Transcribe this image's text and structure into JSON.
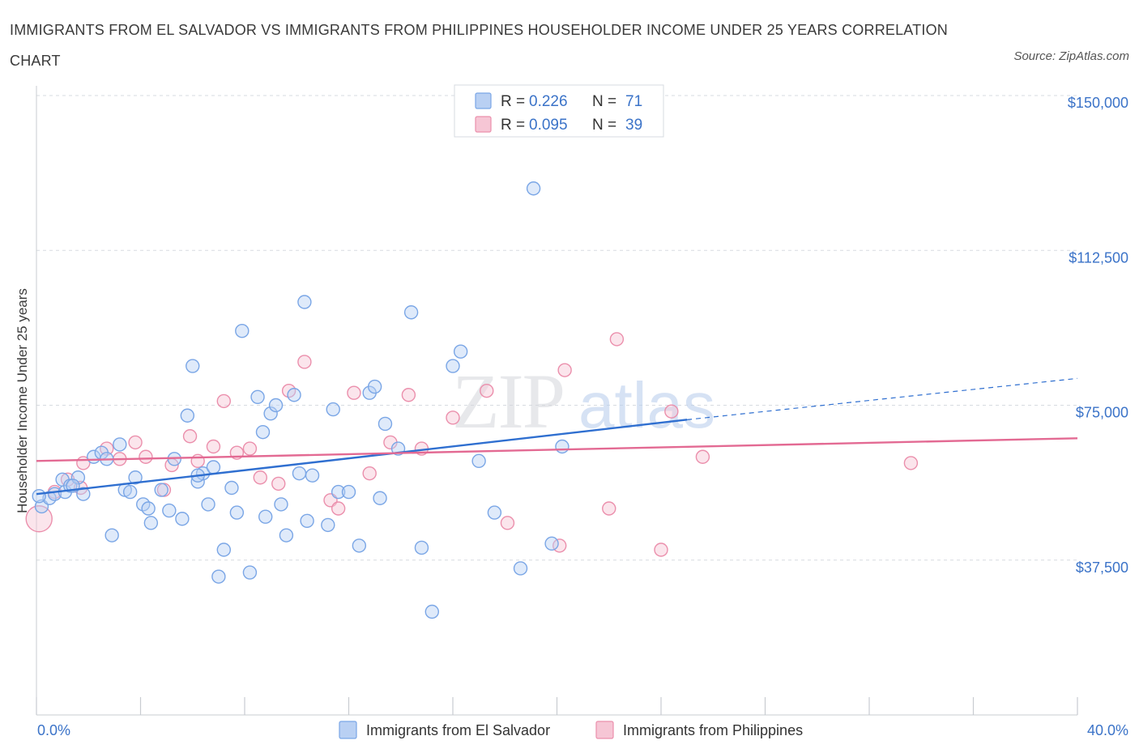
{
  "title": "IMMIGRANTS FROM EL SALVADOR VS IMMIGRANTS FROM PHILIPPINES HOUSEHOLDER INCOME UNDER 25 YEARS CORRELATION CHART",
  "source": "Source: ZipAtlas.com",
  "watermark": "ZIPatlas",
  "colors": {
    "blue": "#7aa6e6",
    "blue_fill": "#b9d0f3",
    "blue_line": "#2f6fd0",
    "pink": "#eb8fac",
    "pink_fill": "#f6c6d5",
    "pink_line": "#e36a93",
    "accent_text": "#3b73c8",
    "grid": "#d7dbe0"
  },
  "legend": {
    "rows": [
      {
        "r_label": "R =",
        "r_value": "0.226",
        "n_label": "N =",
        "n_value": "71",
        "series": "blue"
      },
      {
        "r_label": "R =",
        "r_value": "0.095",
        "n_label": "N =",
        "n_value": "39",
        "series": "pink"
      }
    ]
  },
  "bottom_legend": [
    {
      "label": "Immigrants from El Salvador",
      "series": "blue"
    },
    {
      "label": "Immigrants from Philippines",
      "series": "pink"
    }
  ],
  "chart_data": {
    "type": "scatter",
    "xlabel": "",
    "ylabel": "Householder Income Under 25 years",
    "xlim": [
      0,
      40
    ],
    "ylim": [
      0,
      150000
    ],
    "x_tick_labels": [
      "0.0%",
      "40.0%"
    ],
    "y_ticks": [
      37500,
      75000,
      112500,
      150000
    ],
    "y_tick_labels": [
      "$37,500",
      "$75,000",
      "$112,500",
      "$150,000"
    ],
    "grid": true,
    "legend_position": "top-center",
    "series": [
      {
        "name": "Immigrants from El Salvador",
        "color": "blue",
        "trend": {
          "x0": 0,
          "y0": 53500,
          "x1": 25,
          "y1": 71500,
          "dash_to_x": 40,
          "dash_to_y": 81500
        },
        "points": [
          [
            0.2,
            50500
          ],
          [
            0.5,
            52500
          ],
          [
            0.7,
            53500
          ],
          [
            1.0,
            57000
          ],
          [
            1.1,
            54000
          ],
          [
            1.3,
            55500
          ],
          [
            1.6,
            57500
          ],
          [
            1.8,
            53500
          ],
          [
            2.2,
            62500
          ],
          [
            2.5,
            63500
          ],
          [
            2.7,
            62000
          ],
          [
            2.9,
            43500
          ],
          [
            3.2,
            65500
          ],
          [
            3.4,
            54500
          ],
          [
            3.6,
            54000
          ],
          [
            3.8,
            57500
          ],
          [
            4.1,
            51000
          ],
          [
            4.3,
            50000
          ],
          [
            4.4,
            46500
          ],
          [
            4.8,
            54500
          ],
          [
            5.1,
            49500
          ],
          [
            5.3,
            62000
          ],
          [
            5.6,
            47500
          ],
          [
            5.8,
            72500
          ],
          [
            6.0,
            84500
          ],
          [
            6.2,
            56500
          ],
          [
            6.4,
            58500
          ],
          [
            6.6,
            51000
          ],
          [
            6.8,
            60000
          ],
          [
            7.0,
            33500
          ],
          [
            7.2,
            40000
          ],
          [
            7.5,
            55000
          ],
          [
            7.7,
            49000
          ],
          [
            7.9,
            93000
          ],
          [
            8.2,
            34500
          ],
          [
            8.5,
            77000
          ],
          [
            8.7,
            68500
          ],
          [
            8.8,
            48000
          ],
          [
            9.0,
            73000
          ],
          [
            9.2,
            75000
          ],
          [
            9.4,
            51000
          ],
          [
            9.6,
            43500
          ],
          [
            9.9,
            77500
          ],
          [
            10.1,
            58500
          ],
          [
            10.3,
            100000
          ],
          [
            10.4,
            47000
          ],
          [
            10.6,
            58000
          ],
          [
            11.2,
            46000
          ],
          [
            11.4,
            74000
          ],
          [
            11.6,
            54000
          ],
          [
            12.0,
            54000
          ],
          [
            12.4,
            41000
          ],
          [
            12.8,
            78000
          ],
          [
            13.0,
            79500
          ],
          [
            13.2,
            52500
          ],
          [
            13.4,
            70500
          ],
          [
            13.9,
            64500
          ],
          [
            14.4,
            97500
          ],
          [
            14.8,
            40500
          ],
          [
            15.2,
            25000
          ],
          [
            16.0,
            84500
          ],
          [
            16.3,
            88000
          ],
          [
            17.0,
            61500
          ],
          [
            17.6,
            49000
          ],
          [
            18.6,
            35500
          ],
          [
            19.1,
            127500
          ],
          [
            19.8,
            41500
          ],
          [
            20.2,
            65000
          ],
          [
            0.1,
            53000
          ],
          [
            1.4,
            55500
          ],
          [
            6.2,
            58000
          ]
        ]
      },
      {
        "name": "Immigrants from Philippines",
        "color": "pink",
        "trend": {
          "x0": 0,
          "y0": 61500,
          "x1": 40,
          "y1": 67000
        },
        "points": [
          [
            0.1,
            47500
          ],
          [
            0.7,
            54000
          ],
          [
            1.2,
            57000
          ],
          [
            1.7,
            55000
          ],
          [
            1.8,
            61000
          ],
          [
            2.7,
            64500
          ],
          [
            3.2,
            62000
          ],
          [
            3.8,
            66000
          ],
          [
            4.2,
            62500
          ],
          [
            4.9,
            54500
          ],
          [
            5.2,
            60500
          ],
          [
            5.9,
            67500
          ],
          [
            6.2,
            61500
          ],
          [
            6.8,
            65000
          ],
          [
            7.2,
            76000
          ],
          [
            7.7,
            63500
          ],
          [
            8.2,
            64500
          ],
          [
            8.6,
            57500
          ],
          [
            9.3,
            56000
          ],
          [
            9.7,
            78500
          ],
          [
            10.3,
            85500
          ],
          [
            11.3,
            52000
          ],
          [
            11.6,
            50000
          ],
          [
            12.2,
            78000
          ],
          [
            12.8,
            58500
          ],
          [
            13.6,
            66000
          ],
          [
            14.3,
            77500
          ],
          [
            14.8,
            64500
          ],
          [
            16.0,
            72000
          ],
          [
            17.3,
            78500
          ],
          [
            18.1,
            46500
          ],
          [
            20.1,
            41000
          ],
          [
            20.3,
            83500
          ],
          [
            22.0,
            50000
          ],
          [
            22.3,
            91000
          ],
          [
            24.0,
            40000
          ],
          [
            24.4,
            73500
          ],
          [
            25.6,
            62500
          ],
          [
            33.6,
            61000
          ]
        ]
      }
    ]
  }
}
